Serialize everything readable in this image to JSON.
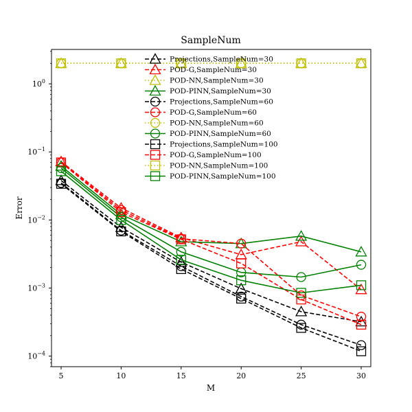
{
  "chart_data": {
    "type": "line",
    "title": "SampleNum",
    "xlabel": "M",
    "ylabel": "Error",
    "yscale": "log",
    "x": [
      5,
      10,
      15,
      20,
      25,
      30
    ],
    "xticks": [
      "5",
      "10",
      "15",
      "20",
      "25",
      "30"
    ],
    "xlim": [
      4.2,
      30.8
    ],
    "ylim": [
      7e-05,
      3.2
    ],
    "yticks": [
      {
        "value": 0.0001,
        "base": "10",
        "exp": "−4"
      },
      {
        "value": 0.001,
        "base": "10",
        "exp": "−3"
      },
      {
        "value": 0.01,
        "base": "10",
        "exp": "−2"
      },
      {
        "value": 0.1,
        "base": "10",
        "exp": "−1"
      },
      {
        "value": 1,
        "base": "10",
        "exp": "0"
      }
    ],
    "grid": false,
    "legend": "top-center",
    "colors": {
      "Projections": "#000000",
      "POD-G": "#ff0000",
      "POD-NN": "#bfbf00",
      "POD-PINN": "#008000"
    },
    "series": [
      {
        "name": "Projections,SampleNum=30",
        "method": "Projections",
        "marker": "triangle",
        "values": [
          0.038,
          0.0078,
          0.0024,
          0.00098,
          0.00045,
          0.00032
        ]
      },
      {
        "name": "POD-G,SampleNum=30",
        "method": "POD-G",
        "marker": "triangle",
        "values": [
          0.072,
          0.015,
          0.0055,
          0.0031,
          0.0048,
          0.00095
        ]
      },
      {
        "name": "POD-NN,SampleNum=30",
        "method": "POD-NN",
        "marker": "triangle",
        "values": [
          2.0,
          2.0,
          2.0,
          2.0,
          2.0,
          2.0
        ]
      },
      {
        "name": "POD-PINN,SampleNum=30",
        "method": "POD-PINN",
        "marker": "triangle",
        "values": [
          0.062,
          0.012,
          0.0048,
          0.0045,
          0.0058,
          0.0034
        ]
      },
      {
        "name": "Projections,SampleNum=60",
        "method": "Projections",
        "marker": "circle",
        "values": [
          0.035,
          0.007,
          0.0021,
          0.00075,
          0.00029,
          0.000145
        ]
      },
      {
        "name": "POD-G,SampleNum=60",
        "method": "POD-G",
        "marker": "circle",
        "values": [
          0.07,
          0.014,
          0.0053,
          0.0045,
          0.00078,
          0.00038
        ]
      },
      {
        "name": "POD-NN,SampleNum=60",
        "method": "POD-NN",
        "marker": "circle",
        "values": [
          2.0,
          2.0,
          2.0,
          2.0,
          2.0,
          2.0
        ]
      },
      {
        "name": "POD-PINN,SampleNum=60",
        "method": "POD-PINN",
        "marker": "circle",
        "values": [
          0.058,
          0.011,
          0.0034,
          0.0017,
          0.00145,
          0.0022
        ]
      },
      {
        "name": "Projections,SampleNum=100",
        "method": "Projections",
        "marker": "square",
        "values": [
          0.034,
          0.0068,
          0.0019,
          0.0007,
          0.00026,
          0.000118
        ]
      },
      {
        "name": "POD-G,SampleNum=100",
        "method": "POD-G",
        "marker": "square",
        "values": [
          0.07,
          0.013,
          0.0052,
          0.0023,
          0.00068,
          0.00029
        ]
      },
      {
        "name": "POD-NN,SampleNum=100",
        "method": "POD-NN",
        "marker": "square",
        "values": [
          2.0,
          2.0,
          2.0,
          2.0,
          2.0,
          2.0
        ]
      },
      {
        "name": "POD-PINN,SampleNum=100",
        "method": "POD-PINN",
        "marker": "square",
        "values": [
          0.052,
          0.01,
          0.0026,
          0.0013,
          0.00085,
          0.0011
        ]
      }
    ]
  }
}
